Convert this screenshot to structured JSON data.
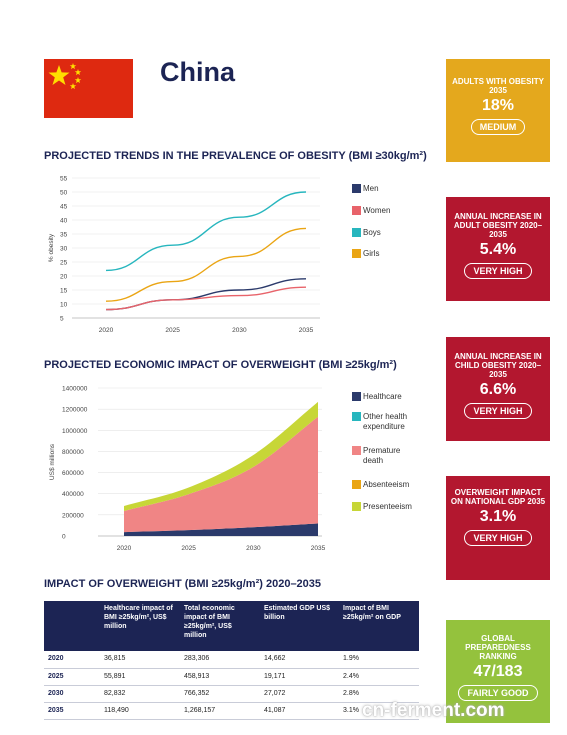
{
  "country": "China",
  "colors": {
    "flag_red": "#de2910",
    "flag_yellow": "#ffde00",
    "navy": "#1c2454",
    "box_yellow": "#e4a81d",
    "box_red": "#b3172f",
    "box_green": "#94c23d"
  },
  "sections": {
    "trends_title": "PROJECTED TRENDS IN THE PREVALENCE OF OBESITY (BMI ≥30kg/m²)",
    "economic_title": "PROJECTED ECONOMIC IMPACT OF OVERWEIGHT (BMI ≥25kg/m²)",
    "impact_title": "IMPACT OF OVERWEIGHT (BMI ≥25kg/m²) 2020–2035"
  },
  "chart_data": [
    {
      "type": "line",
      "title": "PROJECTED TRENDS IN THE PREVALENCE OF OBESITY (BMI ≥30kg/m²)",
      "xlabel": "",
      "ylabel": "% obesity",
      "x": [
        2020,
        2025,
        2030,
        2035
      ],
      "x_ticks": [
        "2020",
        "2025",
        "2030",
        "2035"
      ],
      "y_ticks": [
        "5",
        "10",
        "15",
        "20",
        "25",
        "30",
        "35",
        "40",
        "45",
        "50",
        "55"
      ],
      "ylim": [
        5,
        55
      ],
      "grid": true,
      "legend": "right",
      "series": [
        {
          "name": "Men",
          "color": "#2b3a6b",
          "values": [
            8,
            11.5,
            15,
            19
          ]
        },
        {
          "name": "Women",
          "color": "#e8636a",
          "values": [
            8,
            11.5,
            13,
            16
          ]
        },
        {
          "name": "Boys",
          "color": "#27b6be",
          "values": [
            22,
            31,
            41,
            50
          ]
        },
        {
          "name": "Girls",
          "color": "#eaa514",
          "values": [
            11,
            18,
            27,
            37
          ]
        }
      ]
    },
    {
      "type": "area",
      "title": "PROJECTED ECONOMIC IMPACT OF OVERWEIGHT (BMI ≥25kg/m²)",
      "xlabel": "",
      "ylabel": "US$ millions",
      "x": [
        2020,
        2025,
        2030,
        2035
      ],
      "x_ticks": [
        "2020",
        "2025",
        "2030",
        "2035"
      ],
      "y_ticks": [
        "0",
        "200000",
        "400000",
        "600000",
        "800000",
        "1000000",
        "1200000",
        "1400000"
      ],
      "ylim": [
        0,
        1400000
      ],
      "grid": true,
      "legend": "right",
      "stacked": true,
      "series": [
        {
          "name": "Healthcare",
          "color": "#2b3a6b",
          "values": [
            36815,
            55891,
            82832,
            118490
          ]
        },
        {
          "name": "Other health expenditure",
          "color": "#27b6be",
          "values": [
            0,
            0,
            0,
            0
          ]
        },
        {
          "name": "Premature death",
          "color": "#f08585",
          "values": [
            200000,
            340000,
            570000,
            1010000
          ]
        },
        {
          "name": "Absenteeism",
          "color": "#eaa514",
          "values": [
            0,
            0,
            0,
            0
          ]
        },
        {
          "name": "Presenteeism",
          "color": "#c7d637",
          "values": [
            47000,
            63000,
            113000,
            140000
          ]
        }
      ]
    }
  ],
  "boxes": [
    {
      "head": "ADULTS WITH OBESITY 2035",
      "value": "18%",
      "pill": "MEDIUM",
      "color": "#e4a81d"
    },
    {
      "head": "ANNUAL INCREASE IN ADULT OBESITY 2020–2035",
      "value": "5.4%",
      "pill": "VERY HIGH",
      "color": "#b3172f"
    },
    {
      "head": "ANNUAL INCREASE IN CHILD OBESITY 2020–2035",
      "value": "6.6%",
      "pill": "VERY HIGH",
      "color": "#b3172f"
    },
    {
      "head": "OVERWEIGHT IMPACT ON NATIONAL GDP 2035",
      "value": "3.1%",
      "pill": "VERY HIGH",
      "color": "#b3172f"
    },
    {
      "head": "GLOBAL PREPAREDNESS RANKING",
      "value": "47/183",
      "pill": "FAIRLY GOOD",
      "color": "#94c23d"
    }
  ],
  "table": {
    "headers": [
      "",
      "Healthcare impact of BMI ≥25kg/m², US$ million",
      "Total economic impact of BMI ≥25kg/m², US$ million",
      "Estimated GDP US$ billion",
      "Impact of BMI ≥25kg/m² on GDP"
    ],
    "rows": [
      [
        "2020",
        "36,815",
        "283,306",
        "14,662",
        "1.9%"
      ],
      [
        "2025",
        "55,891",
        "458,913",
        "19,171",
        "2.4%"
      ],
      [
        "2030",
        "82,832",
        "766,352",
        "27,072",
        "2.8%"
      ],
      [
        "2035",
        "118,490",
        "1,268,157",
        "41,087",
        "3.1%"
      ]
    ]
  },
  "watermark": "cn-ferment.com"
}
